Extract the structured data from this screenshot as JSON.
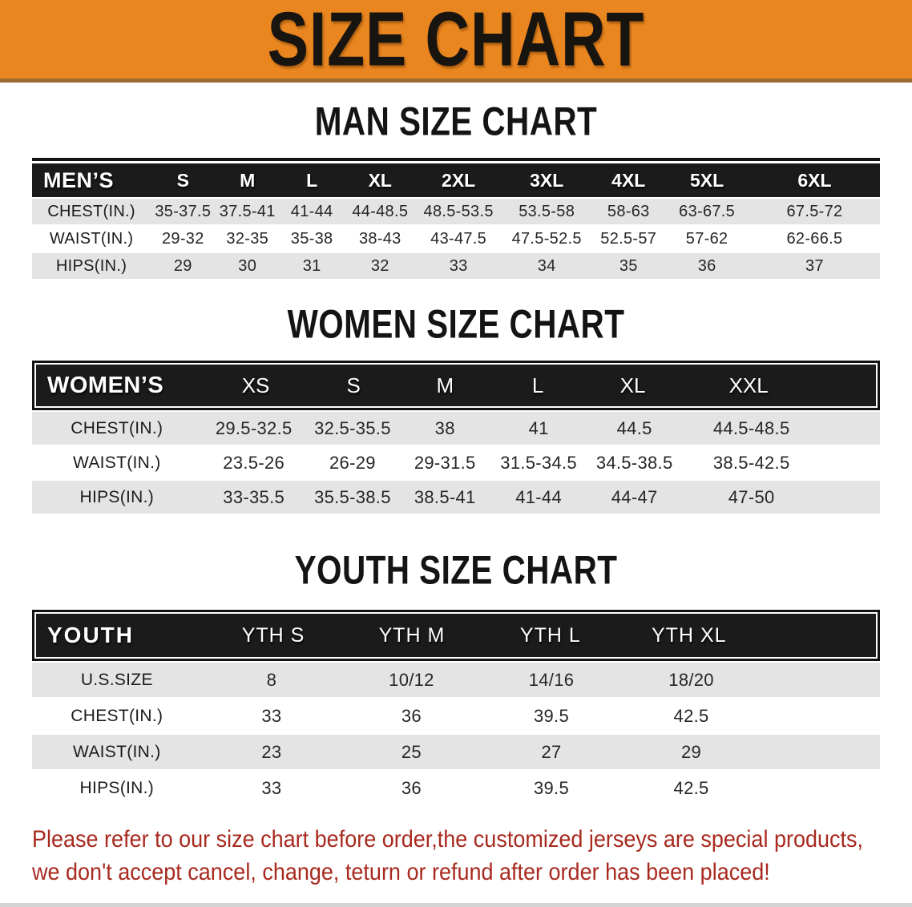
{
  "banner": {
    "title": "SIZE CHART"
  },
  "colors": {
    "banner_bg": "#EA8620",
    "table_header_bg": "#1b1b1b",
    "row_alt_bg": "#e4e4e4",
    "disclaimer_text": "#a8291e"
  },
  "men": {
    "heading": "MAN SIZE CHART",
    "header": {
      "label": "MEN’S",
      "sizes": [
        "S",
        "M",
        "L",
        "XL",
        "2XL",
        "3XL",
        "4XL",
        "5XL",
        "6XL"
      ]
    },
    "rows": [
      {
        "label": "CHEST(IN.)",
        "values": [
          "35-37.5",
          "37.5-41",
          "41-44",
          "44-48.5",
          "48.5-53.5",
          "53.5-58",
          "58-63",
          "63-67.5",
          "67.5-72"
        ]
      },
      {
        "label": "WAIST(IN.)",
        "values": [
          "29-32",
          "32-35",
          "35-38",
          "38-43",
          "43-47.5",
          "47.5-52.5",
          "52.5-57",
          "57-62",
          "62-66.5"
        ]
      },
      {
        "label": "HIPS(IN.)",
        "values": [
          "29",
          "30",
          "31",
          "32",
          "33",
          "34",
          "35",
          "36",
          "37"
        ]
      }
    ]
  },
  "women": {
    "heading": "WOMEN SIZE CHART",
    "header": {
      "label": "WOMEN’S",
      "sizes": [
        "XS",
        "S",
        "M",
        "L",
        "XL",
        "XXL"
      ]
    },
    "rows": [
      {
        "label": "CHEST(IN.)",
        "values": [
          "29.5-32.5",
          "32.5-35.5",
          "38",
          "41",
          "44.5",
          "44.5-48.5"
        ]
      },
      {
        "label": "WAIST(IN.)",
        "values": [
          "23.5-26",
          "26-29",
          "29-31.5",
          "31.5-34.5",
          "34.5-38.5",
          "38.5-42.5"
        ]
      },
      {
        "label": "HIPS(IN.)",
        "values": [
          "33-35.5",
          "35.5-38.5",
          "38.5-41",
          "41-44",
          "44-47",
          "47-50"
        ]
      }
    ]
  },
  "youth": {
    "heading": "YOUTH SIZE CHART",
    "header": {
      "label": "YOUTH",
      "sizes": [
        "YTH S",
        "YTH M",
        "YTH L",
        "YTH XL"
      ]
    },
    "rows": [
      {
        "label": "U.S.SIZE",
        "values": [
          "8",
          "10/12",
          "14/16",
          "18/20"
        ]
      },
      {
        "label": "CHEST(IN.)",
        "values": [
          "33",
          "36",
          "39.5",
          "42.5"
        ]
      },
      {
        "label": "WAIST(IN.)",
        "values": [
          "23",
          "25",
          "27",
          "29"
        ]
      },
      {
        "label": "HIPS(IN.)",
        "values": [
          "33",
          "36",
          "39.5",
          "42.5"
        ]
      }
    ]
  },
  "disclaimer": {
    "line1": "Please refer to our size chart before order,the customized jerseys are special products,",
    "line2": "we don't accept cancel, change, teturn or refund after order has been placed!"
  }
}
